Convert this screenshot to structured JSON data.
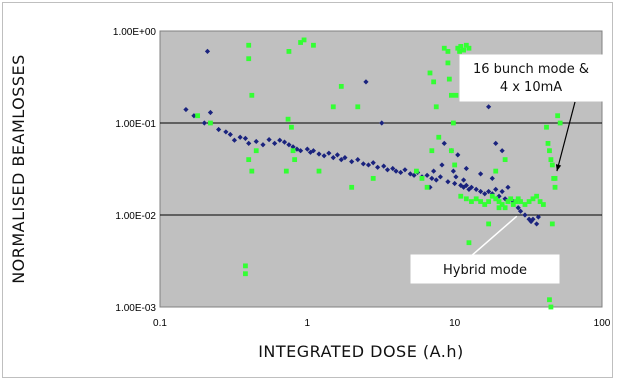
{
  "chart_data": {
    "type": "scatter",
    "xlabel": "INTEGRATED DOSE (A.h)",
    "ylabel": "NORMALISED BEAMLOSSES",
    "x_scale": "log",
    "y_scale": "log",
    "xlim": [
      0.1,
      100
    ],
    "ylim": [
      0.001,
      1
    ],
    "x_ticks": [
      "0.1",
      "1",
      "10",
      "100"
    ],
    "y_ticks": [
      "1.00E-03",
      "1.00E-02",
      "1.00E-01",
      "1.00E+00"
    ],
    "background_color": "#c0c0c0",
    "gridlines": "horizontal at major y ticks",
    "annotations": [
      {
        "text_lines": [
          "16 bunch mode &",
          "4 x 10mA"
        ],
        "points_to": [
          45,
          0.03
        ]
      },
      {
        "text_lines": [
          "Hybrid mode"
        ],
        "points_to": [
          35,
          0.011
        ]
      }
    ],
    "series": [
      {
        "color": "#1a237e",
        "marker": "diamond",
        "points": [
          [
            0.15,
            0.14
          ],
          [
            0.17,
            0.12
          ],
          [
            0.2,
            0.1
          ],
          [
            0.21,
            0.6
          ],
          [
            0.22,
            0.13
          ],
          [
            0.25,
            0.085
          ],
          [
            0.28,
            0.08
          ],
          [
            0.3,
            0.075
          ],
          [
            0.32,
            0.065
          ],
          [
            0.35,
            0.07
          ],
          [
            0.38,
            0.068
          ],
          [
            0.4,
            0.06
          ],
          [
            0.45,
            0.063
          ],
          [
            0.5,
            0.058
          ],
          [
            0.55,
            0.066
          ],
          [
            0.6,
            0.06
          ],
          [
            0.65,
            0.065
          ],
          [
            0.7,
            0.062
          ],
          [
            0.75,
            0.058
          ],
          [
            0.8,
            0.055
          ],
          [
            0.85,
            0.052
          ],
          [
            0.9,
            0.05
          ],
          [
            1.0,
            0.052
          ],
          [
            1.05,
            0.048
          ],
          [
            1.1,
            0.05
          ],
          [
            1.2,
            0.046
          ],
          [
            1.3,
            0.044
          ],
          [
            1.4,
            0.047
          ],
          [
            1.5,
            0.042
          ],
          [
            1.6,
            0.045
          ],
          [
            1.7,
            0.04
          ],
          [
            1.8,
            0.042
          ],
          [
            2.0,
            0.038
          ],
          [
            2.2,
            0.04
          ],
          [
            2.4,
            0.036
          ],
          [
            2.5,
            0.28
          ],
          [
            2.6,
            0.035
          ],
          [
            2.8,
            0.037
          ],
          [
            3.0,
            0.033
          ],
          [
            3.2,
            0.1
          ],
          [
            3.3,
            0.034
          ],
          [
            3.5,
            0.031
          ],
          [
            3.8,
            0.032
          ],
          [
            4.0,
            0.03
          ],
          [
            4.3,
            0.029
          ],
          [
            4.6,
            0.031
          ],
          [
            5.0,
            0.028
          ],
          [
            5.3,
            0.027
          ],
          [
            5.6,
            0.029
          ],
          [
            6.0,
            0.026
          ],
          [
            6.5,
            0.027
          ],
          [
            7.0,
            0.025
          ],
          [
            7.5,
            0.024
          ],
          [
            8.0,
            0.026
          ],
          [
            8.5,
            0.06
          ],
          [
            9.0,
            0.023
          ],
          [
            9.5,
            0.05
          ],
          [
            10.0,
            0.022
          ],
          [
            10.5,
            0.045
          ],
          [
            11.0,
            0.021
          ],
          [
            11.5,
            0.02
          ],
          [
            12.0,
            0.021
          ],
          [
            12.5,
            0.019
          ],
          [
            13.0,
            0.02
          ],
          [
            14.0,
            0.019
          ],
          [
            15.0,
            0.018
          ],
          [
            16.0,
            0.017
          ],
          [
            17.0,
            0.018
          ],
          [
            18.0,
            0.017
          ],
          [
            19.0,
            0.019
          ],
          [
            20.0,
            0.016
          ],
          [
            21.0,
            0.018
          ],
          [
            22.0,
            0.015
          ],
          [
            23.0,
            0.02
          ],
          [
            25.0,
            0.014
          ],
          [
            27.0,
            0.012
          ],
          [
            28.0,
            0.011
          ],
          [
            30.0,
            0.01
          ],
          [
            32.0,
            0.009
          ],
          [
            33.0,
            0.0085
          ],
          [
            34.0,
            0.009
          ],
          [
            36.0,
            0.008
          ],
          [
            37.0,
            0.0095
          ],
          [
            8.2,
            0.035
          ],
          [
            9.8,
            0.03
          ],
          [
            12.0,
            0.032
          ],
          [
            15.0,
            0.028
          ],
          [
            18.0,
            0.025
          ],
          [
            13.5,
            0.2
          ],
          [
            17.0,
            0.15
          ],
          [
            19.0,
            0.06
          ],
          [
            21.0,
            0.05
          ],
          [
            7.2,
            0.03
          ],
          [
            6.8,
            0.02
          ],
          [
            10.2,
            0.026
          ],
          [
            11.5,
            0.024
          ]
        ]
      },
      {
        "color": "#33ff33",
        "marker": "square",
        "points": [
          [
            0.18,
            0.12
          ],
          [
            0.22,
            0.1
          ],
          [
            0.4,
            0.7
          ],
          [
            0.4,
            0.5
          ],
          [
            0.42,
            0.2
          ],
          [
            0.38,
            0.0028
          ],
          [
            0.38,
            0.0023
          ],
          [
            0.45,
            0.05
          ],
          [
            0.4,
            0.04
          ],
          [
            0.42,
            0.03
          ],
          [
            0.72,
            0.03
          ],
          [
            0.75,
            0.6
          ],
          [
            0.78,
            0.09
          ],
          [
            0.8,
            0.05
          ],
          [
            0.82,
            0.04
          ],
          [
            0.74,
            0.11
          ],
          [
            0.9,
            0.75
          ],
          [
            0.95,
            0.8
          ],
          [
            1.1,
            0.7
          ],
          [
            1.2,
            0.03
          ],
          [
            1.5,
            0.15
          ],
          [
            1.7,
            0.25
          ],
          [
            2.0,
            0.02
          ],
          [
            2.2,
            0.15
          ],
          [
            2.8,
            0.025
          ],
          [
            5.5,
            0.03
          ],
          [
            6.0,
            0.025
          ],
          [
            6.5,
            0.02
          ],
          [
            7.0,
            0.05
          ],
          [
            7.2,
            0.28
          ],
          [
            7.5,
            0.15
          ],
          [
            7.8,
            0.07
          ],
          [
            6.8,
            0.35
          ],
          [
            8.5,
            0.65
          ],
          [
            9.0,
            0.6
          ],
          [
            9.2,
            0.3
          ],
          [
            9.5,
            0.2
          ],
          [
            9.8,
            0.1
          ],
          [
            9.5,
            0.05
          ],
          [
            10.0,
            0.035
          ],
          [
            10.5,
            0.65
          ],
          [
            11.0,
            0.68
          ],
          [
            11.5,
            0.62
          ],
          [
            12.0,
            0.7
          ],
          [
            12.5,
            0.65
          ],
          [
            11.0,
            0.016
          ],
          [
            12.0,
            0.015
          ],
          [
            13.0,
            0.014
          ],
          [
            14.0,
            0.015
          ],
          [
            15.0,
            0.014
          ],
          [
            16.0,
            0.013
          ],
          [
            17.0,
            0.014
          ],
          [
            18.0,
            0.016
          ],
          [
            19.0,
            0.015
          ],
          [
            20.0,
            0.014
          ],
          [
            21.0,
            0.013
          ],
          [
            22.0,
            0.012
          ],
          [
            23.0,
            0.014
          ],
          [
            24.0,
            0.015
          ],
          [
            25.0,
            0.013
          ],
          [
            26.0,
            0.014
          ],
          [
            27.0,
            0.015
          ],
          [
            28.0,
            0.014
          ],
          [
            30.0,
            0.013
          ],
          [
            32.0,
            0.014
          ],
          [
            34.0,
            0.015
          ],
          [
            36.0,
            0.016
          ],
          [
            38.0,
            0.014
          ],
          [
            40.0,
            0.013
          ],
          [
            42.0,
            0.09
          ],
          [
            43.0,
            0.06
          ],
          [
            44.0,
            0.05
          ],
          [
            45.0,
            0.04
          ],
          [
            46.0,
            0.035
          ],
          [
            47.0,
            0.025
          ],
          [
            48.0,
            0.02
          ],
          [
            50.0,
            0.12
          ],
          [
            52.0,
            0.1
          ],
          [
            44.0,
            0.0012
          ],
          [
            45.0,
            0.001
          ],
          [
            48.0,
            0.025
          ],
          [
            46.0,
            0.008
          ],
          [
            12.5,
            0.005
          ],
          [
            17.0,
            0.008
          ],
          [
            20.0,
            0.012
          ],
          [
            22.0,
            0.04
          ],
          [
            19.0,
            0.03
          ],
          [
            10.2,
            0.2
          ],
          [
            10.8,
            0.6
          ],
          [
            9.0,
            0.45
          ]
        ]
      }
    ]
  }
}
